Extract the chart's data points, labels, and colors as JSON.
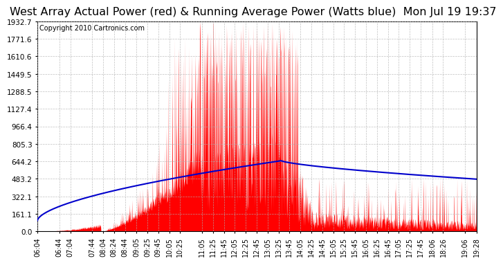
{
  "title": "West Array Actual Power (red) & Running Average Power (Watts blue)  Mon Jul 19 19:37",
  "copyright": "Copyright 2010 Cartronics.com",
  "ylabel_ticks": [
    0.0,
    161.1,
    322.1,
    483.2,
    644.2,
    805.3,
    966.4,
    1127.4,
    1288.5,
    1449.5,
    1610.6,
    1771.6,
    1932.7
  ],
  "ylim": [
    0.0,
    1932.7
  ],
  "background_color": "#ffffff",
  "grid_color": "#b0b0b0",
  "red_color": "#ff0000",
  "blue_color": "#0000cc",
  "title_fontsize": 11.5,
  "copyright_fontsize": 7,
  "tick_fontsize": 7.5,
  "x_tick_labels": [
    "06:04",
    "06:44",
    "07:04",
    "07:44",
    "08:04",
    "08:24",
    "08:44",
    "09:05",
    "09:25",
    "09:45",
    "10:05",
    "10:25",
    "11:05",
    "11:25",
    "11:45",
    "12:05",
    "12:25",
    "12:45",
    "13:05",
    "13:25",
    "13:45",
    "14:05",
    "14:25",
    "14:45",
    "15:05",
    "15:25",
    "15:45",
    "16:05",
    "16:25",
    "16:45",
    "17:05",
    "17:25",
    "17:45",
    "18:06",
    "18:26",
    "19:06",
    "19:28"
  ]
}
